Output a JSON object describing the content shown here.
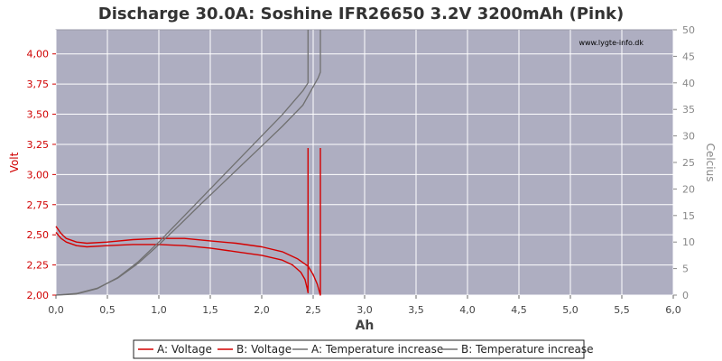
{
  "chart_data": {
    "type": "line",
    "title": "Discharge 30.0A: Soshine IFR26650 3.2V 3200mAh (Pink)",
    "watermark": "www.lygte-info.dk",
    "xlabel": "Ah",
    "ylabel_left": "Volt",
    "ylabel_right": "Celcius",
    "xlim": [
      0,
      6
    ],
    "ylim_left": [
      2.0,
      4.2
    ],
    "ylim_right": [
      0,
      50
    ],
    "x_ticks": [
      "0,0",
      "0,5",
      "1,0",
      "1,5",
      "2,0",
      "2,5",
      "3,0",
      "3,5",
      "4,0",
      "4,5",
      "5,0",
      "5,5",
      "6,0"
    ],
    "y_left_ticks": [
      "2,00",
      "2,25",
      "2,50",
      "2,75",
      "3,00",
      "3,25",
      "3,50",
      "3,75",
      "4,00"
    ],
    "y_right_ticks": [
      "0",
      "5",
      "10",
      "15",
      "20",
      "25",
      "30",
      "35",
      "40",
      "45",
      "50"
    ],
    "grid": true,
    "legend_position": "bottom",
    "colors": {
      "plot_bg": "#aeaec1",
      "grid": "#ffffff",
      "voltage": "#d40000",
      "temperature": "#707070"
    },
    "series": [
      {
        "name": "A: Voltage",
        "axis": "left",
        "x": [
          0.0,
          0.05,
          0.1,
          0.2,
          0.3,
          0.5,
          0.75,
          1.0,
          1.25,
          1.5,
          1.75,
          2.0,
          2.1,
          2.2,
          2.3,
          2.38,
          2.42,
          2.44,
          2.45,
          2.45
        ],
        "y": [
          2.52,
          2.47,
          2.44,
          2.41,
          2.4,
          2.41,
          2.42,
          2.42,
          2.41,
          2.39,
          2.36,
          2.33,
          2.31,
          2.29,
          2.25,
          2.19,
          2.13,
          2.06,
          2.02,
          3.22
        ]
      },
      {
        "name": "B: Voltage",
        "axis": "left",
        "x": [
          0.0,
          0.05,
          0.1,
          0.2,
          0.3,
          0.5,
          0.75,
          1.0,
          1.25,
          1.5,
          1.75,
          2.0,
          2.2,
          2.35,
          2.45,
          2.5,
          2.54,
          2.56,
          2.57,
          2.57
        ],
        "y": [
          2.57,
          2.51,
          2.47,
          2.44,
          2.43,
          2.44,
          2.46,
          2.47,
          2.47,
          2.45,
          2.43,
          2.4,
          2.36,
          2.3,
          2.24,
          2.17,
          2.09,
          2.03,
          2.0,
          3.22
        ]
      },
      {
        "name": "A: Temperature increase",
        "axis": "right",
        "x": [
          0.0,
          0.2,
          0.4,
          0.6,
          0.8,
          1.0,
          1.2,
          1.4,
          1.6,
          1.8,
          2.0,
          2.2,
          2.4,
          2.45,
          2.45
        ],
        "y": [
          0.0,
          0.2,
          1.2,
          3.3,
          6.3,
          10.0,
          14.0,
          18.0,
          22.0,
          26.0,
          30.0,
          34.0,
          38.5,
          40.0,
          50.0
        ]
      },
      {
        "name": "B: Temperature increase",
        "axis": "right",
        "x": [
          0.0,
          0.2,
          0.4,
          0.6,
          0.8,
          1.0,
          1.2,
          1.4,
          1.6,
          1.8,
          2.0,
          2.2,
          2.4,
          2.55,
          2.57,
          2.57
        ],
        "y": [
          0.0,
          0.3,
          1.3,
          3.2,
          6.0,
          9.5,
          13.2,
          17.0,
          20.7,
          24.4,
          28.1,
          31.8,
          35.8,
          41.0,
          42.0,
          50.0
        ]
      }
    ]
  }
}
